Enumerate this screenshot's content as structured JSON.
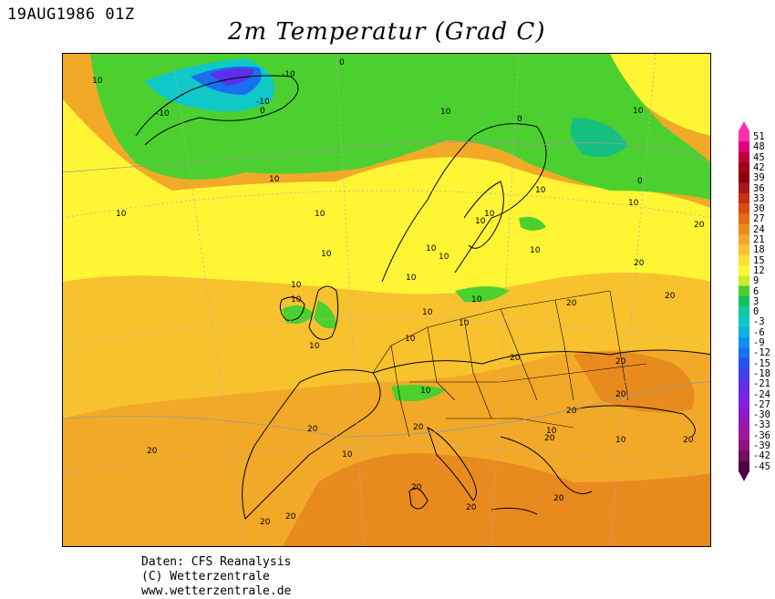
{
  "header": {
    "date": "19AUG1986 01Z",
    "title": "2m Temperatur (Grad C)"
  },
  "colorbar": {
    "labels": [
      "51",
      "48",
      "45",
      "42",
      "39",
      "36",
      "33",
      "30",
      "27",
      "24",
      "21",
      "18",
      "15",
      "12",
      "9",
      "6",
      "3",
      "0",
      "-3",
      "-6",
      "-9",
      "-12",
      "-15",
      "-18",
      "-21",
      "-24",
      "-27",
      "-30",
      "-33",
      "-36",
      "-39",
      "-42",
      "-45"
    ],
    "colors": [
      "#ff2fb0",
      "#e0007a",
      "#c00040",
      "#a00018",
      "#8c0010",
      "#a81818",
      "#c43010",
      "#d84c10",
      "#e66a14",
      "#ee8a1e",
      "#f4a628",
      "#f8c22e",
      "#fae032",
      "#fff535",
      "#c8ee2a",
      "#4cd030",
      "#18c060",
      "#10c8a0",
      "#10c8c8",
      "#10b0e0",
      "#1090f0",
      "#1870f0",
      "#2850f0",
      "#4040f0",
      "#5a30e8",
      "#7028e0",
      "#8020d8",
      "#9018c8",
      "#9818b0",
      "#a0189c",
      "#901080",
      "#701060",
      "#500040"
    ]
  },
  "map": {
    "contour_labels": [
      "10",
      "0",
      "-10",
      "-10",
      "-10",
      "0",
      "10",
      "10",
      "0",
      "0",
      "10",
      "10",
      "10",
      "10",
      "10",
      "10",
      "10",
      "10",
      "10",
      "10",
      "10",
      "10",
      "10",
      "10",
      "10",
      "10",
      "10",
      "10",
      "10",
      "10",
      "20",
      "20",
      "20",
      "20",
      "20",
      "20",
      "20",
      "20",
      "20",
      "20",
      "20",
      "20",
      "20",
      "20",
      "20",
      "20",
      "10",
      "10",
      "10",
      "20",
      "20"
    ]
  },
  "credit": {
    "line1": "Daten: CFS Reanalysis",
    "line2": "(C) Wetterzentrale",
    "line3": "www.wetterzentrale.de"
  }
}
